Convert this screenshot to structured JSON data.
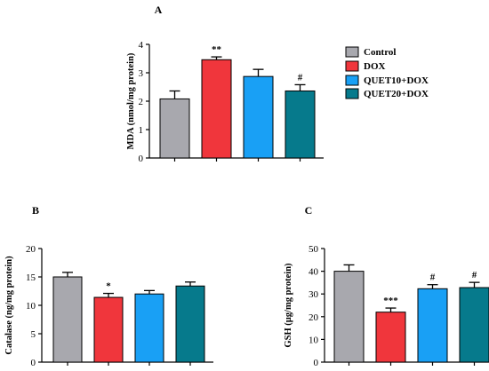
{
  "colors": {
    "Control": "#a8a8ae",
    "DOX": "#f0363c",
    "QUET10+DOX": "#19a0f5",
    "QUET20+DOX": "#067a8c"
  },
  "legend": {
    "placement": "top-right",
    "entries": [
      "Control",
      "DOX",
      "QUET10+DOX",
      "QUET20+DOX"
    ]
  },
  "chart_data": [
    {
      "type": "bar",
      "panel": "A",
      "title": "",
      "ylabel": "MDA (nmol/mg protein)",
      "xlabel": "",
      "ylim": [
        0,
        4
      ],
      "yticks": [
        0,
        1,
        2,
        3,
        4
      ],
      "categories": [
        "Control",
        "DOX",
        "QUET10+DOX",
        "QUET20+DOX"
      ],
      "values": [
        2.08,
        3.46,
        2.87,
        2.36
      ],
      "errors": [
        0.28,
        0.1,
        0.25,
        0.22
      ],
      "significance": [
        "",
        "**",
        "",
        "#"
      ]
    },
    {
      "type": "bar",
      "panel": "B",
      "title": "",
      "ylabel": "Catalase (ng/mg protein)",
      "xlabel": "",
      "ylim": [
        0,
        20
      ],
      "yticks": [
        0,
        5,
        10,
        15,
        20
      ],
      "categories": [
        "Control",
        "DOX",
        "QUET10+DOX",
        "QUET20+DOX"
      ],
      "values": [
        15.0,
        11.4,
        12.0,
        13.4
      ],
      "errors": [
        0.8,
        0.7,
        0.6,
        0.7
      ],
      "significance": [
        "",
        "*",
        "",
        ""
      ]
    },
    {
      "type": "bar",
      "panel": "C",
      "title": "",
      "ylabel": "GSH (µg/mg protein)",
      "xlabel": "",
      "ylim": [
        0,
        50
      ],
      "yticks": [
        0,
        10,
        20,
        30,
        40,
        50
      ],
      "categories": [
        "Control",
        "DOX",
        "QUET10+DOX",
        "QUET20+DOX"
      ],
      "values": [
        40.0,
        22.0,
        32.3,
        32.8
      ],
      "errors": [
        2.8,
        1.8,
        1.8,
        2.3
      ],
      "significance": [
        "",
        "***",
        "#",
        "#"
      ]
    }
  ]
}
